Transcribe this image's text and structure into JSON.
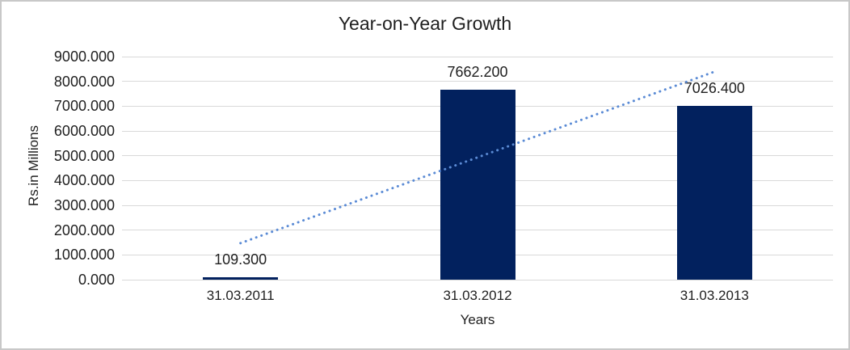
{
  "chart_data": {
    "type": "bar",
    "title": "Year-on-Year Growth",
    "xlabel": "Years",
    "ylabel": "Rs.in Millions",
    "categories": [
      "31.03.2011",
      "31.03.2012",
      "31.03.2013"
    ],
    "values": [
      109.3,
      7662.2,
      7026.4
    ],
    "value_labels": [
      "109.300",
      "7662.200",
      "7026.400"
    ],
    "ylim": [
      0,
      9000
    ],
    "ytick_step": 1000,
    "ytick_labels": [
      "0.000",
      "1000.000",
      "2000.000",
      "3000.000",
      "4000.000",
      "5000.000",
      "6000.000",
      "7000.000",
      "8000.000",
      "9000.000"
    ],
    "grid": true,
    "legend_position": "none",
    "trendline": {
      "type": "linear",
      "line_style": "dotted",
      "start_value": 1474.1,
      "end_value": 8391.2
    },
    "colors": {
      "bar": "#02215E",
      "trendline": "#5B8BD5",
      "gridline": "#D9D9D9",
      "text": "#1F1F1F",
      "frame_border": "#C8C8C8",
      "background": "#FFFFFF"
    }
  }
}
